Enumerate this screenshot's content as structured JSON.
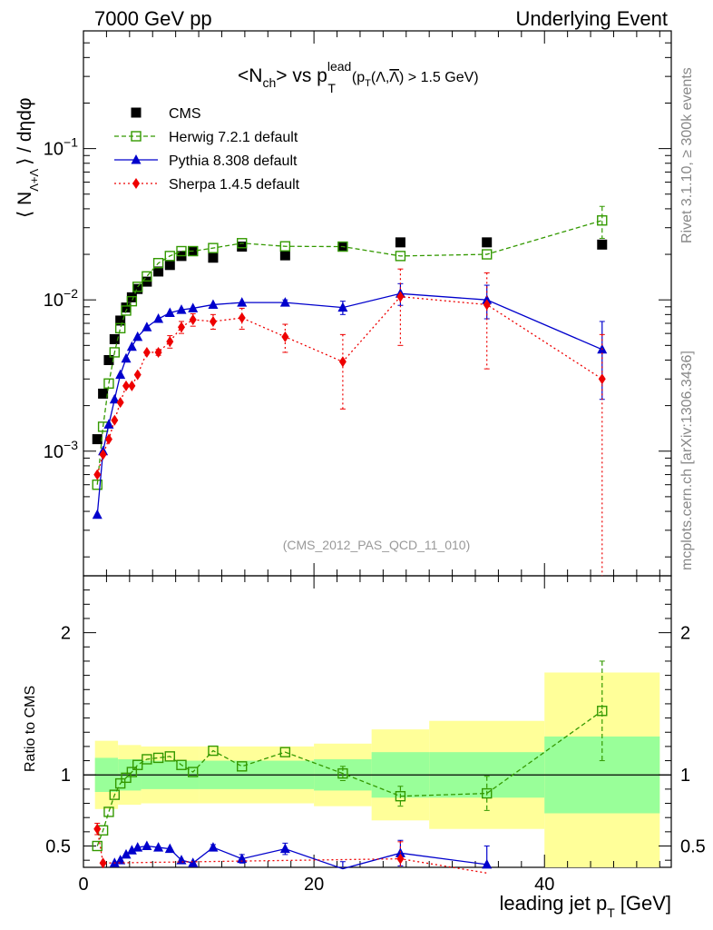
{
  "header": {
    "left": "7000 GeV pp",
    "right": "Underlying Event"
  },
  "title": {
    "main": "<N",
    "sub_ch": "ch",
    "mid": "> vs p",
    "sup_lead": "lead",
    "sub_T": "T",
    "cond_pre": "(p",
    "cond_sub": "T",
    "cond_mid": "(Λ,",
    "cond_lambar": "Λ",
    "cond_post": ") > 1.5 GeV)"
  },
  "side_labels": {
    "rivet": "Rivet 3.1.10, ≥ 300k events",
    "mcplots": "mcplots.cern.ch [arXiv:1306.3436]"
  },
  "watermark": "(CMS_2012_PAS_QCD_11_010)",
  "ylabel_main": {
    "open": "⟨ N",
    "sub": "Λ+Λ",
    "close": "⟩ / dηdφ"
  },
  "ylabel_ratio": "Ratio to CMS",
  "xlabel": {
    "pre": "leading jet p",
    "sub": "T",
    "post": "[GeV]"
  },
  "legend": [
    {
      "label": "CMS",
      "color": "#000000",
      "marker": "square-filled",
      "line": "none"
    },
    {
      "label": "Herwig 7.2.1 default",
      "color": "#339900",
      "marker": "square-open",
      "line": "dashed"
    },
    {
      "label": "Pythia 8.308 default",
      "color": "#0000cc",
      "marker": "triangle-filled",
      "line": "solid"
    },
    {
      "label": "Sherpa 1.4.5 default",
      "color": "#ee0000",
      "marker": "diamond-filled",
      "line": "dotted"
    }
  ],
  "chart_data": [
    {
      "type": "scatter",
      "panel": "main",
      "xlim": [
        0,
        51
      ],
      "ylim": [
        0.00015,
        0.6
      ],
      "yscale": "log",
      "yticks": [
        {
          "value": 0.001,
          "base": "10",
          "exp": "−3"
        },
        {
          "value": 0.01,
          "base": "10",
          "exp": "−2"
        },
        {
          "value": 0.1,
          "base": "10",
          "exp": "−1"
        }
      ],
      "series": [
        {
          "name": "CMS",
          "x": [
            1.2,
            1.7,
            2.2,
            2.7,
            3.2,
            3.7,
            4.2,
            4.7,
            5.5,
            6.5,
            7.5,
            8.5,
            9.5,
            11.25,
            13.75,
            17.5,
            22.5,
            27.5,
            35,
            45
          ],
          "y": [
            0.0012,
            0.0024,
            0.004,
            0.0055,
            0.0073,
            0.0089,
            0.0104,
            0.0118,
            0.0132,
            0.0154,
            0.017,
            0.0195,
            0.021,
            0.019,
            0.0225,
            0.0197,
            0.0225,
            0.024,
            0.024,
            0.0232
          ]
        },
        {
          "name": "Herwig 7.2.1 default",
          "x": [
            1.2,
            1.7,
            2.2,
            2.7,
            3.2,
            3.7,
            4.2,
            4.7,
            5.5,
            6.5,
            7.5,
            8.5,
            9.5,
            11.25,
            13.75,
            17.5,
            22.5,
            27.5,
            35,
            45
          ],
          "y": [
            0.0006,
            0.00145,
            0.0028,
            0.0045,
            0.0065,
            0.0085,
            0.0098,
            0.0122,
            0.0143,
            0.0175,
            0.0195,
            0.021,
            0.021,
            0.022,
            0.0237,
            0.0226,
            0.0225,
            0.0195,
            0.02,
            0.0335
          ],
          "err": [
            0,
            0,
            0,
            0,
            0,
            0,
            0,
            0,
            0,
            0,
            0,
            0,
            0,
            0,
            0,
            0,
            0,
            0,
            0,
            0.008
          ]
        },
        {
          "name": "Pythia 8.308 default",
          "x": [
            1.2,
            1.7,
            2.2,
            2.7,
            3.2,
            3.7,
            4.2,
            4.7,
            5.5,
            6.5,
            7.5,
            8.5,
            9.5,
            11.25,
            13.75,
            17.5,
            22.5,
            27.5,
            35,
            45
          ],
          "y": [
            0.00038,
            0.001,
            0.0015,
            0.0022,
            0.0032,
            0.0041,
            0.0049,
            0.0057,
            0.0066,
            0.0075,
            0.0082,
            0.0086,
            0.0088,
            0.0093,
            0.0096,
            0.0096,
            0.0089,
            0.011,
            0.01,
            0.0047
          ],
          "err": [
            0,
            0,
            0,
            0,
            0,
            0,
            0,
            0,
            0,
            0,
            0,
            0,
            0,
            0,
            0,
            0.0004,
            0.0009,
            0.0018,
            0.0025,
            0.0025
          ]
        },
        {
          "name": "Sherpa 1.4.5 default",
          "x": [
            1.2,
            1.7,
            2.2,
            2.7,
            3.2,
            3.7,
            4.2,
            4.7,
            5.5,
            6.5,
            7.5,
            8.5,
            9.5,
            11.25,
            13.75,
            17.5,
            22.5,
            27.5,
            35,
            45
          ],
          "y": [
            0.0007,
            0.00095,
            0.0012,
            0.0016,
            0.0021,
            0.0027,
            0.0027,
            0.0032,
            0.0045,
            0.0045,
            0.0053,
            0.0066,
            0.0074,
            0.0072,
            0.0076,
            0.0057,
            0.0039,
            0.0105,
            0.0093,
            0.003
          ],
          "err": [
            0,
            0,
            0,
            0,
            0,
            0,
            0,
            0,
            0,
            0.0002,
            0.0005,
            0.0006,
            0.0007,
            0.0008,
            0.0012,
            0.0012,
            0.002,
            0.0055,
            0.0058,
            0.0029
          ]
        }
      ]
    },
    {
      "type": "scatter",
      "panel": "ratio",
      "xlim": [
        0,
        51
      ],
      "ylim": [
        0.35,
        2.4
      ],
      "yticks": [
        0.5,
        1,
        2
      ],
      "xticks": [
        0,
        20,
        40
      ],
      "bands": {
        "edges": [
          1,
          3,
          5,
          10,
          20,
          25,
          30,
          40,
          50
        ],
        "green": [
          0.12,
          0.11,
          0.1,
          0.1,
          0.11,
          0.16,
          0.16,
          0.27
        ],
        "yellow": [
          0.24,
          0.21,
          0.2,
          0.2,
          0.22,
          0.32,
          0.38,
          0.72
        ]
      },
      "series": [
        {
          "name": "Herwig 7.2.1 default",
          "x": [
            1.2,
            1.7,
            2.2,
            2.7,
            3.2,
            3.7,
            4.2,
            4.7,
            5.5,
            6.5,
            7.5,
            8.5,
            9.5,
            11.25,
            13.75,
            17.5,
            22.5,
            27.5,
            35,
            45
          ],
          "y": [
            0.5,
            0.61,
            0.74,
            0.86,
            0.94,
            0.98,
            1.02,
            1.07,
            1.11,
            1.12,
            1.13,
            1.07,
            1.02,
            1.17,
            1.06,
            1.16,
            1.01,
            0.85,
            0.87,
            1.45
          ],
          "err": [
            0,
            0,
            0,
            0,
            0,
            0,
            0,
            0,
            0,
            0,
            0,
            0,
            0,
            0,
            0,
            0,
            0.05,
            0.07,
            0.12,
            0.35
          ]
        },
        {
          "name": "Pythia 8.308 default",
          "x": [
            2.7,
            3.2,
            3.7,
            4.2,
            4.7,
            5.5,
            6.5,
            7.5,
            8.5,
            9.5,
            11.25,
            13.75,
            17.5,
            22.5,
            27.5,
            35
          ],
          "y": [
            0.38,
            0.4,
            0.44,
            0.47,
            0.49,
            0.5,
            0.49,
            0.48,
            0.4,
            0.38,
            0.49,
            0.41,
            0.48,
            0.34,
            0.45,
            0.37
          ],
          "err": [
            0,
            0,
            0,
            0,
            0,
            0,
            0,
            0,
            0,
            0,
            0.02,
            0.03,
            0.04,
            0.05,
            0.09,
            0.13
          ]
        },
        {
          "name": "Sherpa 1.4.5 default",
          "x": [
            1.2,
            1.7,
            27.5,
            35
          ],
          "y": [
            0.62,
            0.38,
            0.41,
            0.31
          ],
          "err": [
            0.04,
            0,
            0.12,
            0
          ]
        }
      ]
    }
  ]
}
